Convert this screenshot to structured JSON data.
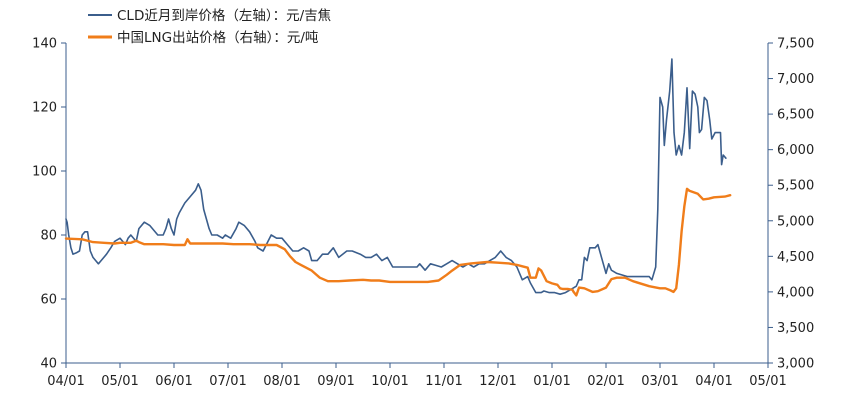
{
  "chart_data": {
    "type": "line",
    "title": "",
    "xlabel": "",
    "ylabel": "",
    "x_tick_labels": [
      "04/01",
      "05/01",
      "06/01",
      "07/01",
      "08/01",
      "09/01",
      "10/01",
      "11/01",
      "12/01",
      "01/01",
      "02/01",
      "03/01",
      "04/01",
      "05/01"
    ],
    "y_left": {
      "range": [
        40,
        140
      ],
      "ticks": [
        40,
        60,
        80,
        100,
        120,
        140
      ],
      "tick_labels": [
        "40",
        "60",
        "80",
        "100",
        "120",
        "140"
      ]
    },
    "y_right": {
      "range": [
        3000,
        7500
      ],
      "ticks": [
        3000,
        3500,
        4000,
        4500,
        5000,
        5500,
        6000,
        6500,
        7000,
        7500
      ],
      "tick_labels": [
        "3,000",
        "3,500",
        "4,000",
        "4,500",
        "5,000",
        "5,500",
        "6,000",
        "6,500",
        "7,000",
        "7,500"
      ]
    },
    "grid": false,
    "legend_position": "top-left",
    "series": [
      {
        "name": "CLD近月到岸价格（左轴）：元/吉焦",
        "axis": "left",
        "color": "#3b5e8c",
        "points": [
          [
            0,
            85
          ],
          [
            0.02,
            84
          ],
          [
            0.05,
            80
          ],
          [
            0.09,
            76
          ],
          [
            0.13,
            74
          ],
          [
            0.2,
            74.5
          ],
          [
            0.25,
            75
          ],
          [
            0.3,
            80
          ],
          [
            0.35,
            81
          ],
          [
            0.4,
            81
          ],
          [
            0.45,
            75
          ],
          [
            0.5,
            73
          ],
          [
            0.55,
            72
          ],
          [
            0.6,
            71
          ],
          [
            0.65,
            72
          ],
          [
            0.75,
            74
          ],
          [
            0.83,
            76
          ],
          [
            0.9,
            78
          ],
          [
            1.0,
            79
          ],
          [
            1.05,
            78
          ],
          [
            1.1,
            77
          ],
          [
            1.15,
            79
          ],
          [
            1.2,
            80
          ],
          [
            1.3,
            78
          ],
          [
            1.35,
            82
          ],
          [
            1.45,
            84
          ],
          [
            1.55,
            83
          ],
          [
            1.7,
            80
          ],
          [
            1.8,
            80
          ],
          [
            1.85,
            82
          ],
          [
            1.9,
            85
          ],
          [
            1.95,
            82
          ],
          [
            2.0,
            80
          ],
          [
            2.05,
            85
          ],
          [
            2.1,
            87
          ],
          [
            2.2,
            90
          ],
          [
            2.3,
            92
          ],
          [
            2.4,
            94
          ],
          [
            2.45,
            96
          ],
          [
            2.5,
            94
          ],
          [
            2.55,
            88
          ],
          [
            2.6,
            85
          ],
          [
            2.65,
            82
          ],
          [
            2.7,
            80
          ],
          [
            2.8,
            80
          ],
          [
            2.9,
            79
          ],
          [
            2.95,
            80
          ],
          [
            3.05,
            79
          ],
          [
            3.15,
            82
          ],
          [
            3.2,
            84
          ],
          [
            3.3,
            83
          ],
          [
            3.4,
            81
          ],
          [
            3.5,
            78
          ],
          [
            3.55,
            76
          ],
          [
            3.65,
            75
          ],
          [
            3.8,
            80
          ],
          [
            3.9,
            79
          ],
          [
            4.0,
            79
          ],
          [
            4.1,
            77
          ],
          [
            4.2,
            75
          ],
          [
            4.3,
            75
          ],
          [
            4.4,
            76
          ],
          [
            4.5,
            75
          ],
          [
            4.55,
            72
          ],
          [
            4.65,
            72
          ],
          [
            4.75,
            74
          ],
          [
            4.85,
            74
          ],
          [
            4.95,
            76
          ],
          [
            5.05,
            73
          ],
          [
            5.2,
            75
          ],
          [
            5.3,
            75
          ],
          [
            5.45,
            74
          ],
          [
            5.55,
            73
          ],
          [
            5.65,
            73
          ],
          [
            5.75,
            74
          ],
          [
            5.85,
            72
          ],
          [
            5.95,
            73
          ],
          [
            6.05,
            70
          ],
          [
            6.2,
            70
          ],
          [
            6.4,
            70
          ],
          [
            6.5,
            70
          ],
          [
            6.55,
            71
          ],
          [
            6.65,
            69
          ],
          [
            6.75,
            71
          ],
          [
            6.85,
            70.5
          ],
          [
            6.95,
            70
          ],
          [
            7.05,
            71
          ],
          [
            7.15,
            72
          ],
          [
            7.25,
            71
          ],
          [
            7.35,
            70
          ],
          [
            7.45,
            71
          ],
          [
            7.55,
            70
          ],
          [
            7.65,
            71
          ],
          [
            7.75,
            71
          ],
          [
            7.85,
            72
          ],
          [
            7.95,
            73
          ],
          [
            8.05,
            75
          ],
          [
            8.15,
            73
          ],
          [
            8.25,
            72
          ],
          [
            8.35,
            70
          ],
          [
            8.45,
            66
          ],
          [
            8.55,
            67
          ],
          [
            8.6,
            65
          ],
          [
            8.7,
            62
          ],
          [
            8.8,
            62
          ],
          [
            8.85,
            62.5
          ],
          [
            8.95,
            62
          ],
          [
            9.05,
            62
          ],
          [
            9.15,
            61.5
          ],
          [
            9.25,
            62
          ],
          [
            9.35,
            63
          ],
          [
            9.45,
            64
          ],
          [
            9.5,
            66
          ],
          [
            9.55,
            66
          ],
          [
            9.6,
            73
          ],
          [
            9.65,
            72
          ],
          [
            9.7,
            76
          ],
          [
            9.8,
            76
          ],
          [
            9.85,
            77
          ],
          [
            9.9,
            74
          ],
          [
            9.95,
            71
          ],
          [
            10.0,
            68
          ],
          [
            10.05,
            71
          ],
          [
            10.1,
            69
          ],
          [
            10.2,
            68
          ],
          [
            10.4,
            67
          ],
          [
            10.6,
            67
          ],
          [
            10.8,
            67
          ],
          [
            10.85,
            66
          ],
          [
            10.92,
            70
          ],
          [
            10.96,
            88
          ],
          [
            11.0,
            123
          ],
          [
            11.05,
            120
          ],
          [
            11.08,
            108
          ],
          [
            11.12,
            116
          ],
          [
            11.18,
            125
          ],
          [
            11.22,
            135
          ],
          [
            11.26,
            112
          ],
          [
            11.3,
            105
          ],
          [
            11.35,
            108
          ],
          [
            11.4,
            105
          ],
          [
            11.45,
            112
          ],
          [
            11.5,
            126
          ],
          [
            11.55,
            107
          ],
          [
            11.6,
            125
          ],
          [
            11.65,
            124
          ],
          [
            11.7,
            120
          ],
          [
            11.73,
            112
          ],
          [
            11.77,
            113
          ],
          [
            11.82,
            123
          ],
          [
            11.87,
            122
          ],
          [
            11.92,
            116
          ],
          [
            11.96,
            110
          ],
          [
            12.02,
            112
          ],
          [
            12.08,
            112
          ],
          [
            12.12,
            112
          ],
          [
            12.14,
            102
          ],
          [
            12.17,
            105
          ],
          [
            12.22,
            104
          ]
        ]
      },
      {
        "name": "中国LNG出站价格（右轴）：元/吨",
        "axis": "right",
        "color": "#f07d1a",
        "points": [
          [
            0,
            4750
          ],
          [
            0.3,
            4740
          ],
          [
            0.5,
            4700
          ],
          [
            0.7,
            4690
          ],
          [
            0.9,
            4680
          ],
          [
            1.0,
            4690
          ],
          [
            1.2,
            4690
          ],
          [
            1.3,
            4720
          ],
          [
            1.35,
            4700
          ],
          [
            1.45,
            4670
          ],
          [
            1.8,
            4670
          ],
          [
            2.0,
            4660
          ],
          [
            2.2,
            4660
          ],
          [
            2.25,
            4740
          ],
          [
            2.3,
            4680
          ],
          [
            2.6,
            4680
          ],
          [
            2.9,
            4680
          ],
          [
            3.1,
            4670
          ],
          [
            3.4,
            4670
          ],
          [
            3.6,
            4660
          ],
          [
            3.9,
            4660
          ],
          [
            4.05,
            4600
          ],
          [
            4.15,
            4500
          ],
          [
            4.25,
            4420
          ],
          [
            4.35,
            4380
          ],
          [
            4.55,
            4300
          ],
          [
            4.7,
            4200
          ],
          [
            4.85,
            4150
          ],
          [
            5.05,
            4150
          ],
          [
            5.25,
            4160
          ],
          [
            5.5,
            4170
          ],
          [
            5.65,
            4160
          ],
          [
            5.8,
            4160
          ],
          [
            6.0,
            4140
          ],
          [
            6.5,
            4140
          ],
          [
            6.7,
            4140
          ],
          [
            6.9,
            4160
          ],
          [
            7.05,
            4240
          ],
          [
            7.15,
            4300
          ],
          [
            7.3,
            4380
          ],
          [
            7.5,
            4400
          ],
          [
            7.8,
            4420
          ],
          [
            8.0,
            4410
          ],
          [
            8.2,
            4400
          ],
          [
            8.35,
            4380
          ],
          [
            8.45,
            4360
          ],
          [
            8.55,
            4340
          ],
          [
            8.6,
            4200
          ],
          [
            8.65,
            4200
          ],
          [
            8.7,
            4200
          ],
          [
            8.75,
            4330
          ],
          [
            8.8,
            4300
          ],
          [
            8.9,
            4150
          ],
          [
            9.0,
            4120
          ],
          [
            9.1,
            4100
          ],
          [
            9.15,
            4050
          ],
          [
            9.2,
            4040
          ],
          [
            9.3,
            4040
          ],
          [
            9.38,
            4030
          ],
          [
            9.4,
            4000
          ],
          [
            9.45,
            3950
          ],
          [
            9.5,
            4060
          ],
          [
            9.6,
            4050
          ],
          [
            9.75,
            4000
          ],
          [
            9.85,
            4010
          ],
          [
            10.0,
            4060
          ],
          [
            10.1,
            4180
          ],
          [
            10.2,
            4200
          ],
          [
            10.35,
            4200
          ],
          [
            10.5,
            4150
          ],
          [
            10.8,
            4080
          ],
          [
            11.0,
            4050
          ],
          [
            11.1,
            4050
          ],
          [
            11.2,
            4020
          ],
          [
            11.25,
            4000
          ],
          [
            11.3,
            4050
          ],
          [
            11.35,
            4380
          ],
          [
            11.4,
            4850
          ],
          [
            11.45,
            5200
          ],
          [
            11.5,
            5450
          ],
          [
            11.55,
            5420
          ],
          [
            11.7,
            5380
          ],
          [
            11.8,
            5300
          ],
          [
            11.9,
            5310
          ],
          [
            12.0,
            5330
          ],
          [
            12.2,
            5340
          ],
          [
            12.3,
            5360
          ]
        ]
      }
    ]
  }
}
